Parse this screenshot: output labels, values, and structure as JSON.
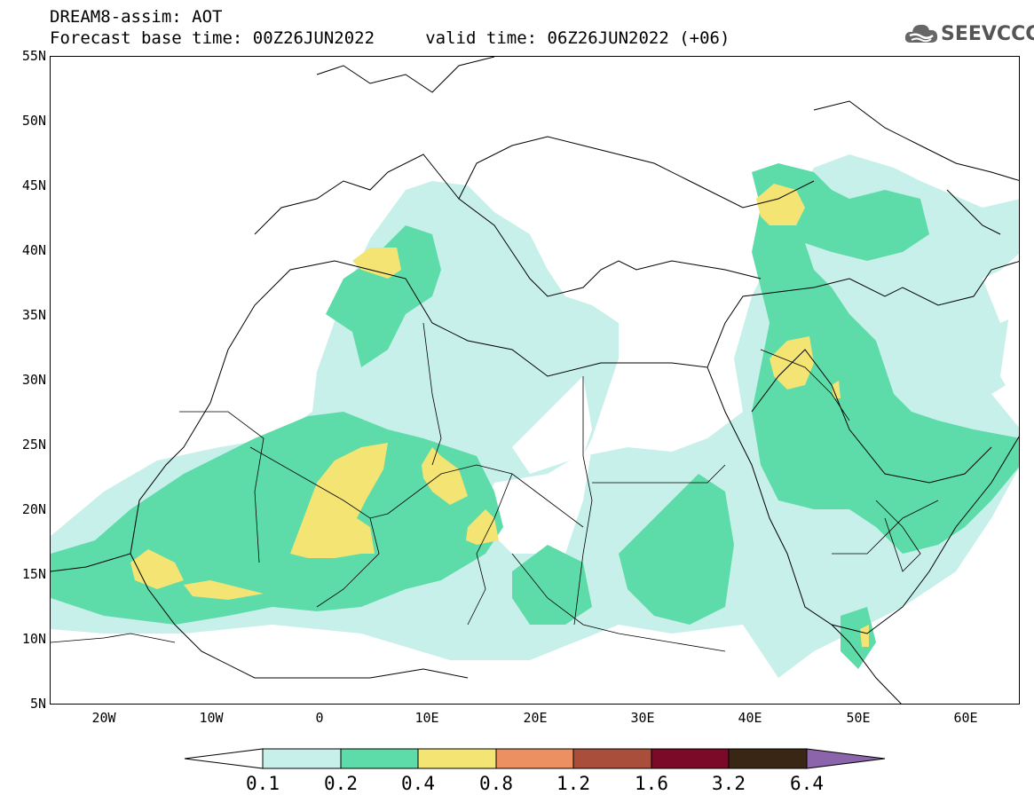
{
  "title": {
    "line1": "DREAM8-assim: AOT",
    "line2": "Forecast base time: 00Z26JUN2022     valid time: 06Z26JUN2022 (+06)"
  },
  "logo": {
    "text": "SEEVCCC",
    "icon": "cloud-icon"
  },
  "map": {
    "lon_range": [
      -25,
      65
    ],
    "lat_range": [
      5,
      55
    ],
    "y_ticks": [
      "55N",
      "50N",
      "45N",
      "40N",
      "35N",
      "30N",
      "25N",
      "20N",
      "15N",
      "10N",
      "5N"
    ],
    "x_ticks": [
      "20W",
      "10W",
      "0",
      "10E",
      "20E",
      "30E",
      "40E",
      "50E",
      "60E"
    ]
  },
  "colorbar": {
    "labels": [
      "0.1",
      "0.2",
      "0.4",
      "0.8",
      "1.2",
      "1.6",
      "3.2",
      "6.4"
    ],
    "colors": [
      "#ffffff",
      "#c8f0ea",
      "#5ddcaa",
      "#f4e474",
      "#ec9062",
      "#a84e3a",
      "#7a0a28",
      "#3a2614",
      "#8c64ac"
    ]
  }
}
